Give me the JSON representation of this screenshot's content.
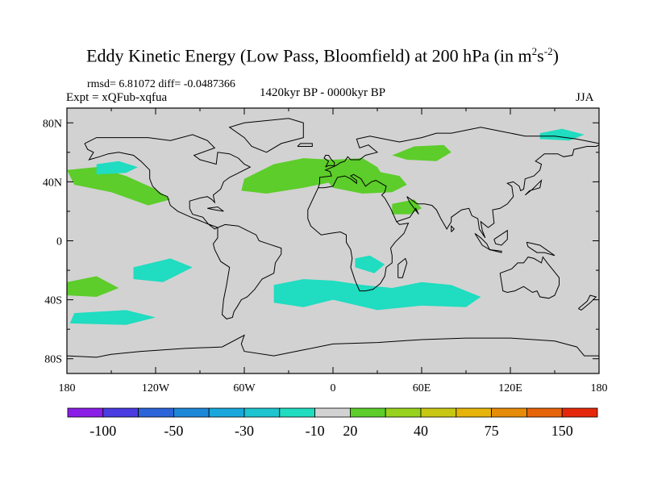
{
  "title_main": "Eddy Kinetic Energy (Low Pass, Bloomfield) at 200 hPa (in m",
  "title_exp1": "2",
  "title_s": "s",
  "title_exp2": "-2",
  "title_close": ")",
  "stats": "rmsd= 6.81072 diff= -0.0487366",
  "experiment": "Expt = xQFub-xqfua",
  "period": "1420kyr BP - 0000kyr BP",
  "season": "JJA",
  "lat_ticks": [
    {
      "value": 80,
      "label": "80N"
    },
    {
      "value": 40,
      "label": "40N"
    },
    {
      "value": 0,
      "label": "0"
    },
    {
      "value": -40,
      "label": "40S"
    },
    {
      "value": -80,
      "label": "80S"
    }
  ],
  "lon_ticks": [
    {
      "value": -180,
      "label": "180"
    },
    {
      "value": -120,
      "label": "120W"
    },
    {
      "value": -60,
      "label": "60W"
    },
    {
      "value": 0,
      "label": "0"
    },
    {
      "value": 60,
      "label": "60E"
    },
    {
      "value": 120,
      "label": "120E"
    },
    {
      "value": 180,
      "label": "180"
    }
  ],
  "colorbar": {
    "colors": [
      "#8a1ee6",
      "#4a3ce0",
      "#2a64d8",
      "#1e88d8",
      "#1aa8dc",
      "#1ec4d0",
      "#20dcc0",
      "#d2d2d2",
      "#5ccd2a",
      "#96d21e",
      "#c8c814",
      "#e6b40a",
      "#e68c0a",
      "#e6640a",
      "#e6280a"
    ],
    "labels": [
      {
        "after": 1,
        "text": "-100"
      },
      {
        "after": 3,
        "text": "-50"
      },
      {
        "after": 5,
        "text": "-30"
      },
      {
        "after": 7,
        "text": "-10"
      },
      {
        "after": 8,
        "text": "20"
      },
      {
        "after": 10,
        "text": "40"
      },
      {
        "after": 12,
        "text": "75"
      },
      {
        "after": 14,
        "text": "150"
      }
    ]
  },
  "colors": {
    "background_field": "#d2d2d2",
    "positive": "#5ccd2a",
    "negative": "#20dcc0",
    "coast": "#000000"
  },
  "anomalies": [
    {
      "sign": "pos",
      "lon": [
        -180,
        -160,
        -140,
        -120,
        -110,
        -125,
        -150,
        -175
      ],
      "lat": [
        48,
        50,
        44,
        35,
        28,
        24,
        33,
        38
      ]
    },
    {
      "sign": "pos",
      "lon": [
        -60,
        -40,
        -20,
        0,
        20,
        30,
        35,
        20,
        0,
        -20,
        -45,
        -62
      ],
      "lat": [
        42,
        52,
        56,
        55,
        56,
        50,
        42,
        36,
        40,
        36,
        32,
        34
      ]
    },
    {
      "sign": "pos",
      "lon": [
        -5,
        10,
        30,
        45,
        50,
        40,
        20,
        0
      ],
      "lat": [
        42,
        45,
        47,
        44,
        38,
        33,
        32,
        36
      ]
    },
    {
      "sign": "pos",
      "lon": [
        40,
        55,
        75,
        80,
        70,
        50
      ],
      "lat": [
        58,
        64,
        65,
        60,
        54,
        55
      ]
    },
    {
      "sign": "pos",
      "lon": [
        40,
        55,
        60,
        52,
        40
      ],
      "lat": [
        25,
        28,
        22,
        18,
        18
      ]
    },
    {
      "sign": "pos",
      "lon": [
        -180,
        -160,
        -145,
        -160,
        -180
      ],
      "lat": [
        -28,
        -24,
        -32,
        -38,
        -37
      ]
    },
    {
      "sign": "neg",
      "lon": [
        -160,
        -145,
        -132,
        -140,
        -160
      ],
      "lat": [
        52,
        54,
        50,
        46,
        45
      ]
    },
    {
      "sign": "neg",
      "lon": [
        -175,
        -140,
        -120,
        -140,
        -178
      ],
      "lat": [
        -49,
        -47,
        -52,
        -57,
        -56
      ]
    },
    {
      "sign": "neg",
      "lon": [
        -40,
        -20,
        0,
        20,
        40,
        60,
        80,
        100,
        90,
        60,
        30,
        0,
        -20,
        -40
      ],
      "lat": [
        -30,
        -26,
        -27,
        -30,
        -32,
        -28,
        -30,
        -38,
        -45,
        -44,
        -47,
        -40,
        -45,
        -42
      ]
    },
    {
      "sign": "neg",
      "lon": [
        15,
        25,
        35,
        28,
        15
      ],
      "lat": [
        -12,
        -10,
        -16,
        -22,
        -18
      ]
    },
    {
      "sign": "neg",
      "lon": [
        -135,
        -110,
        -95,
        -115,
        -135
      ],
      "lat": [
        -18,
        -12,
        -18,
        -28,
        -26
      ]
    },
    {
      "sign": "neg",
      "lon": [
        140,
        155,
        170,
        160,
        140
      ],
      "lat": [
        73,
        76,
        72,
        68,
        69
      ]
    }
  ]
}
